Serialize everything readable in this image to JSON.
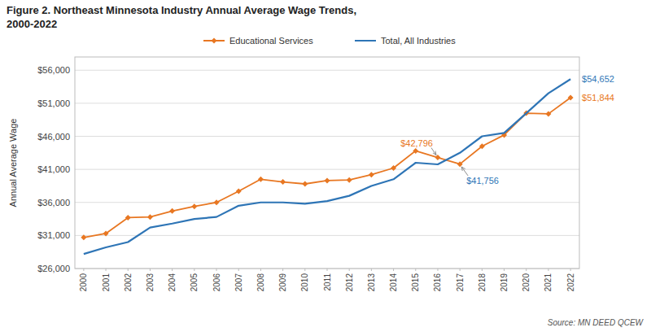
{
  "chart_data": {
    "type": "line",
    "title": [
      "Figure 2.  Northeast Minnesota Industry Annual Average Wage Trends,",
      "2000-2022"
    ],
    "y_label": "Annual Average Wage",
    "x": [
      2000,
      2001,
      2002,
      2003,
      2004,
      2005,
      2006,
      2007,
      2008,
      2009,
      2010,
      2011,
      2012,
      2013,
      2014,
      2015,
      2016,
      2017,
      2018,
      2019,
      2020,
      2021,
      2022
    ],
    "series": [
      {
        "name": "Educational Services",
        "color": "#E87722",
        "marker": "diamond",
        "values": [
          30700,
          31300,
          33700,
          33800,
          34700,
          35400,
          36000,
          37700,
          39500,
          39100,
          38800,
          39300,
          39400,
          40200,
          41200,
          43800,
          42796,
          41800,
          44500,
          46200,
          49500,
          49400,
          51844
        ]
      },
      {
        "name": "Total, All Industries",
        "color": "#2E75B6",
        "values": [
          28200,
          29200,
          30000,
          32200,
          32800,
          33500,
          33800,
          35500,
          36000,
          36000,
          35800,
          36200,
          37000,
          38500,
          39500,
          42000,
          41756,
          43500,
          46000,
          46500,
          49500,
          52500,
          54652
        ]
      }
    ],
    "xlim": [
      1999.6,
      2022.4
    ],
    "xticks": [
      2000,
      2001,
      2002,
      2003,
      2004,
      2005,
      2006,
      2007,
      2008,
      2009,
      2010,
      2011,
      2012,
      2013,
      2014,
      2015,
      2016,
      2017,
      2018,
      2019,
      2020,
      2021,
      2022
    ],
    "ylim": [
      26000,
      58000
    ],
    "yticks": [
      {
        "value": 26000,
        "label": "$26,000"
      },
      {
        "value": 31000,
        "label": "$31,000"
      },
      {
        "value": 36000,
        "label": "$36,000"
      },
      {
        "value": 41000,
        "label": "$41,000"
      },
      {
        "value": 46000,
        "label": "$46,000"
      },
      {
        "value": 51000,
        "label": "$51,000"
      },
      {
        "value": 56000,
        "label": "$56,000"
      }
    ],
    "grid": true,
    "legend": "top",
    "annotations": [
      {
        "text": "$42,796",
        "x": 2016,
        "y": 42796,
        "color": "#E87722"
      },
      {
        "text": "$41,756",
        "x": 2017,
        "y": 41756,
        "color": "#2E75B6"
      },
      {
        "text": "$54,652",
        "x": 2022,
        "y": 54652,
        "color": "#2E75B6"
      },
      {
        "text": "$51,844",
        "x": 2022,
        "y": 51844,
        "color": "#E87722"
      }
    ],
    "source": "Source:  MN DEED QCEW"
  }
}
